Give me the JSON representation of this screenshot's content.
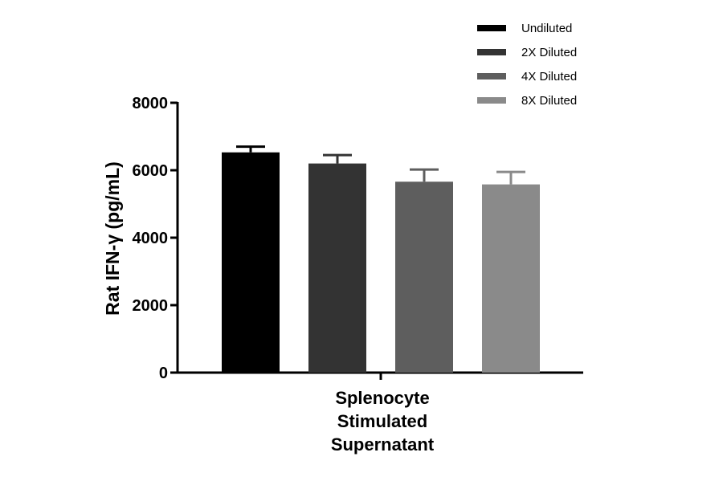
{
  "chart_data": {
    "type": "bar",
    "title": "",
    "ylabel": "Rat IFN-γ (pg/mL)",
    "xlabel": "",
    "category_lines": [
      "Splenocyte",
      "Stimulated",
      "Supernatant"
    ],
    "ylim": [
      0,
      8000
    ],
    "yticks": [
      0,
      2000,
      4000,
      6000,
      8000
    ],
    "grid": false,
    "legend_position": "top-right",
    "series": [
      {
        "name": "Undiluted",
        "value": 6530,
        "error": 170,
        "color": "#000000"
      },
      {
        "name": "2X Diluted",
        "value": 6200,
        "error": 250,
        "color": "#333333"
      },
      {
        "name": "4X Diluted",
        "value": 5660,
        "error": 360,
        "color": "#5e5e5e"
      },
      {
        "name": "8X Diluted",
        "value": 5580,
        "error": 370,
        "color": "#8a8a8a"
      }
    ]
  }
}
